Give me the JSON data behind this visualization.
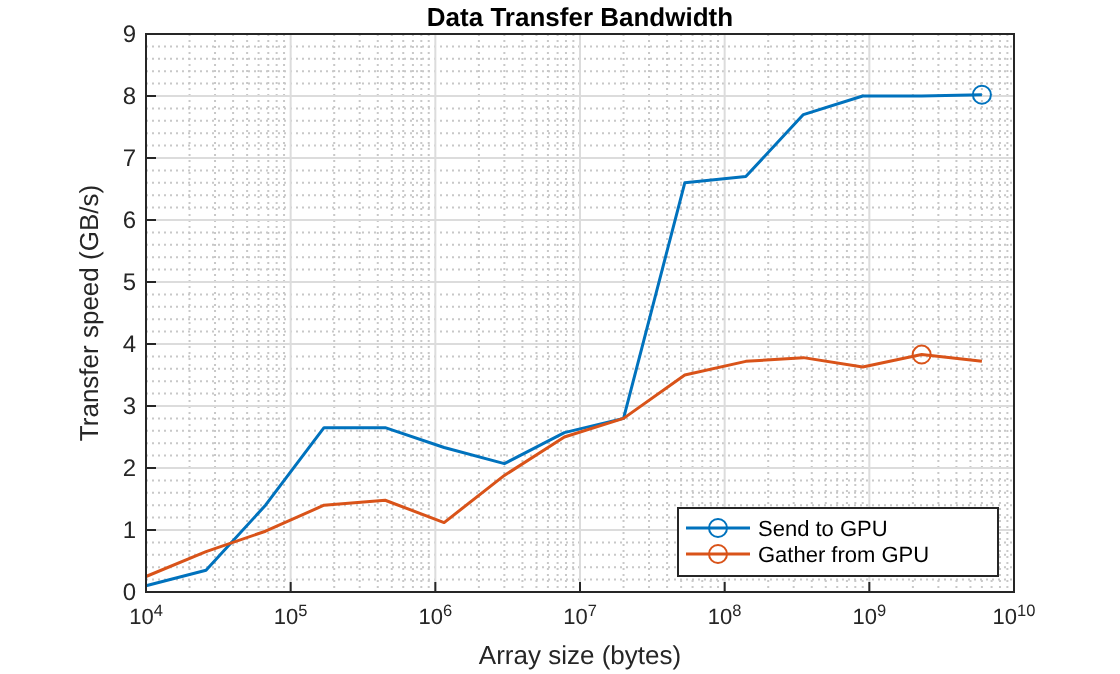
{
  "chart_data": {
    "type": "line",
    "title": "Data Transfer Bandwidth",
    "xlabel": "Array size (bytes)",
    "ylabel": "Transfer speed (GB/s)",
    "log": "x",
    "grid": true,
    "legend": "bottom right",
    "line_style": "solid",
    "marker": "none",
    "x": [
      10000,
      26000,
      67000,
      170000,
      450000,
      1150000,
      3000000,
      7800000,
      20000000,
      53000000,
      140000000,
      350000000,
      900000000,
      2300000000,
      6000000000
    ],
    "xlim": [
      10000,
      10000000000
    ],
    "ylim": [
      0,
      9
    ],
    "yticks": [
      0,
      1,
      2,
      3,
      4,
      5,
      6,
      7,
      8,
      9
    ],
    "xticks": [
      {
        "value": 10000,
        "label": "10$^{4}$"
      },
      {
        "value": 100000,
        "label": "10$^{5}$"
      },
      {
        "value": 1000000,
        "label": "10$^{6}$"
      },
      {
        "value": 10000000,
        "label": "10$^{7}$"
      },
      {
        "value": 100000000,
        "label": "10$^{8}$"
      },
      {
        "value": 1000000000,
        "label": "10$^{9}$"
      },
      {
        "value": 10000000000,
        "label": "10$^{10}$"
      }
    ],
    "series": [
      {
        "name": "Send to GPU",
        "color": "#0072bd",
        "values": [
          0.1,
          0.35,
          1.4,
          2.65,
          2.65,
          2.33,
          2.07,
          2.57,
          2.8,
          6.6,
          6.7,
          7.7,
          8.0,
          8.0,
          8.02
        ]
      },
      {
        "name": "Gather from GPU",
        "color": "#d95319",
        "values": [
          0.25,
          0.65,
          0.98,
          1.4,
          1.48,
          1.12,
          1.88,
          2.5,
          2.8,
          3.5,
          3.72,
          3.78,
          3.63,
          3.83,
          3.72
        ]
      },
      {
        "type": "scatter",
        "marker": "circle",
        "color": "#0072bd",
        "x": [
          6000000000
        ],
        "values": [
          8.02
        ]
      },
      {
        "type": "scatter",
        "marker": "circle",
        "color": "#d95319",
        "x": [
          2300000000
        ],
        "values": [
          3.83
        ]
      }
    ]
  }
}
